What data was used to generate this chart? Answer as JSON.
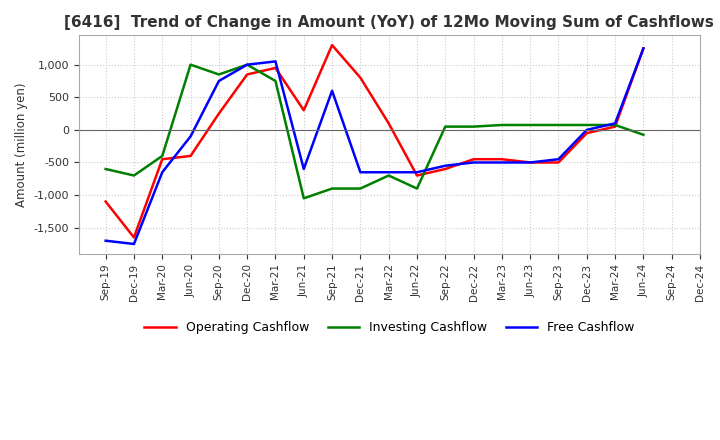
{
  "title": "[6416]  Trend of Change in Amount (YoY) of 12Mo Moving Sum of Cashflows",
  "ylabel": "Amount (million yen)",
  "x_labels": [
    "Sep-19",
    "Dec-19",
    "Mar-20",
    "Jun-20",
    "Sep-20",
    "Dec-20",
    "Mar-21",
    "Jun-21",
    "Sep-21",
    "Dec-21",
    "Mar-22",
    "Jun-22",
    "Sep-22",
    "Dec-22",
    "Mar-23",
    "Jun-23",
    "Sep-23",
    "Dec-23",
    "Mar-24",
    "Jun-24",
    "Sep-24",
    "Dec-24"
  ],
  "operating": [
    -1100,
    -1650,
    -450,
    -400,
    250,
    850,
    950,
    300,
    1300,
    800,
    100,
    -700,
    -600,
    -450,
    -450,
    -500,
    -500,
    -50,
    50,
    1250,
    null,
    null
  ],
  "investing": [
    -600,
    -700,
    -400,
    1000,
    850,
    1000,
    750,
    -1050,
    -900,
    -900,
    -700,
    -900,
    50,
    50,
    75,
    75,
    75,
    75,
    75,
    -75,
    null,
    null
  ],
  "free": [
    -1700,
    -1750,
    -650,
    -100,
    750,
    1000,
    1050,
    -600,
    600,
    -650,
    -650,
    -650,
    -550,
    -500,
    -500,
    -500,
    -450,
    0,
    100,
    1250,
    null,
    null
  ],
  "operating_color": "#ff0000",
  "investing_color": "#008000",
  "free_color": "#0000ff",
  "ylim": [
    -1900,
    1450
  ],
  "yticks": [
    -1500,
    -1000,
    -500,
    0,
    500,
    1000
  ],
  "grid_color": "#cccccc",
  "title_fontsize": 11,
  "bg_color": "#ffffff",
  "legend_labels": [
    "Operating Cashflow",
    "Investing Cashflow",
    "Free Cashflow"
  ]
}
